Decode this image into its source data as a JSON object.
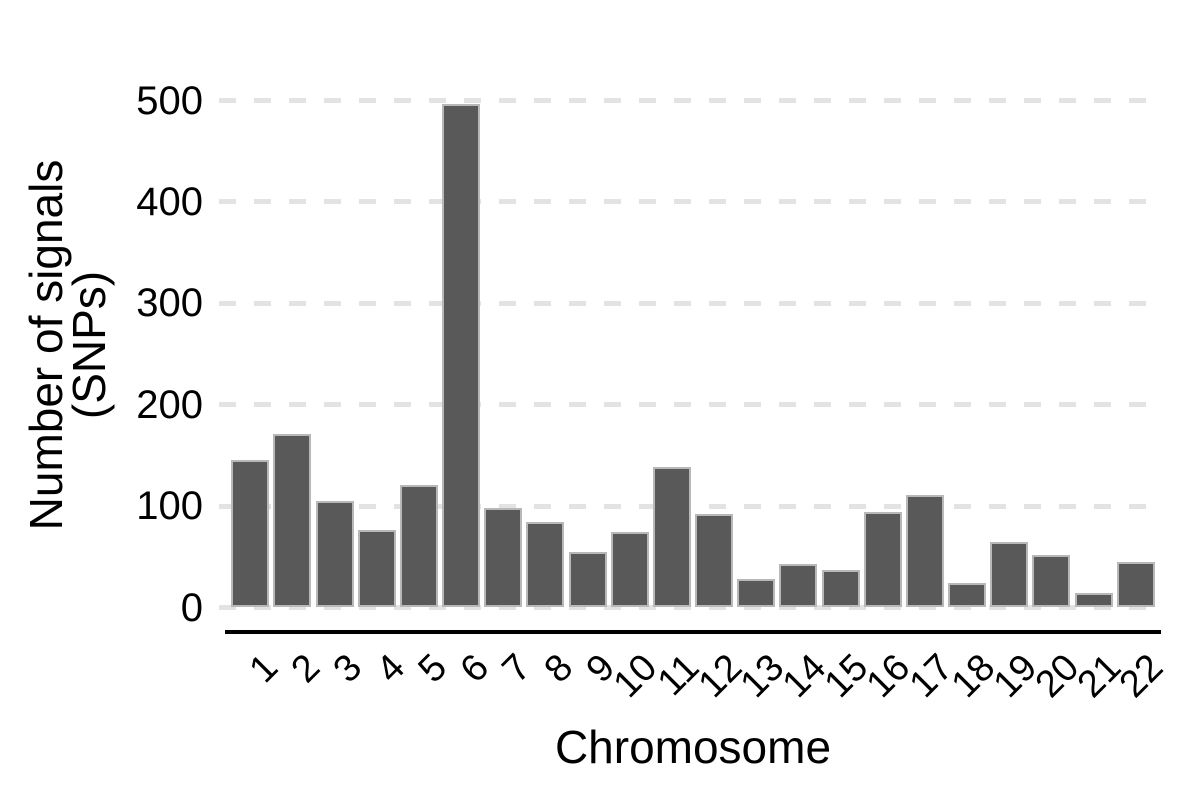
{
  "chart_data": {
    "type": "bar",
    "title": "",
    "xlabel": "Chromosome",
    "ylabel": "Number of signals (SNPs)",
    "ylabel_lines": [
      "Number of signals",
      "(SNPs)"
    ],
    "categories": [
      "1",
      "2",
      "3",
      "4",
      "5",
      "6",
      "7",
      "8",
      "9",
      "10",
      "11",
      "12",
      "13",
      "14",
      "15",
      "16",
      "17",
      "18",
      "19",
      "20",
      "21",
      "22"
    ],
    "values": [
      145,
      171,
      105,
      76,
      121,
      497,
      98,
      84,
      55,
      74,
      139,
      92,
      28,
      43,
      37,
      94,
      111,
      24,
      65,
      52,
      14,
      45
    ],
    "yticks": [
      0,
      100,
      200,
      300,
      400,
      500
    ],
    "ylim": [
      0,
      500
    ],
    "grid": "horizontal-dashed",
    "legend": "none",
    "bar_color": "#595959",
    "bar_border_color": "#b8b8b8",
    "gridline_color": "#e3e3e3",
    "axis_line_color": "#000000",
    "text_color": "#000000",
    "background_color": "#ffffff"
  }
}
